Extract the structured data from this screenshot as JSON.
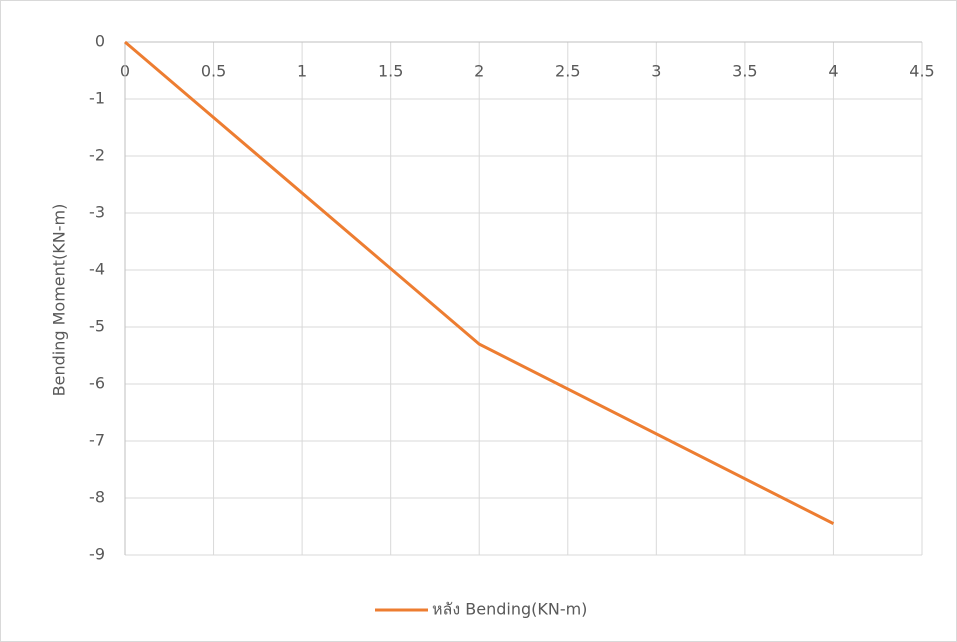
{
  "chart_data": {
    "type": "line",
    "y_axis_label": "Bending Moment(KN-m)",
    "x": [
      0,
      2,
      4
    ],
    "series": [
      {
        "name": "หลัง Bending(KN-m)",
        "color": "#ed7d31",
        "values": [
          0,
          -5.3,
          -8.45
        ]
      }
    ],
    "xlim": [
      0,
      4.5
    ],
    "xticks": [
      0,
      0.5,
      1,
      1.5,
      2,
      2.5,
      3,
      3.5,
      4,
      4.5
    ],
    "ylim": [
      -9,
      0
    ],
    "yticks": [
      0,
      -1,
      -2,
      -3,
      -4,
      -5,
      -6,
      -7,
      -8,
      -9
    ],
    "grid": true,
    "legend": "bottom"
  }
}
